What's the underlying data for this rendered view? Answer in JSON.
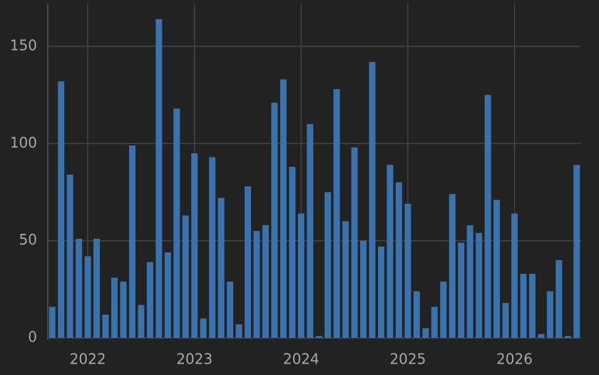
{
  "chart_data": {
    "type": "bar",
    "categories": [
      null,
      null,
      null,
      null,
      "2022",
      null,
      null,
      null,
      null,
      null,
      null,
      null,
      null,
      null,
      null,
      null,
      "2023",
      null,
      null,
      null,
      null,
      null,
      null,
      null,
      null,
      null,
      null,
      null,
      "2024",
      null,
      null,
      null,
      null,
      null,
      null,
      null,
      null,
      null,
      null,
      null,
      "2025",
      null,
      null,
      null,
      null,
      null,
      null,
      null,
      null,
      null,
      null,
      null,
      "2026",
      null,
      null,
      null,
      null,
      null,
      null,
      null
    ],
    "values": [
      16,
      132,
      84,
      51,
      42,
      51,
      12,
      31,
      29,
      99,
      17,
      39,
      164,
      44,
      118,
      63,
      95,
      10,
      93,
      72,
      29,
      7,
      78,
      55,
      58,
      121,
      133,
      88,
      64,
      110,
      1,
      75,
      128,
      60,
      98,
      50,
      142,
      47,
      89,
      80,
      69,
      24,
      5,
      16,
      29,
      74,
      49,
      58,
      54,
      125,
      71,
      18,
      64,
      33,
      33,
      2,
      24,
      40,
      1,
      89
    ],
    "color": "#3a72ad",
    "ylim": [
      0,
      172
    ],
    "yticks": [
      0,
      50,
      100,
      150
    ],
    "grid": true
  }
}
